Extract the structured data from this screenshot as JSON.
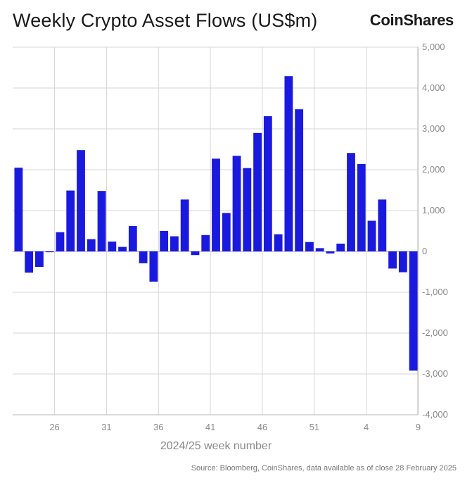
{
  "header": {
    "title": "Weekly Crypto Asset Flows (US$m)",
    "brand": "CoinShares"
  },
  "footer": {
    "source": "Source: Bloomberg, CoinShares, data available as of close 28 February 2025"
  },
  "chart_data": {
    "type": "bar",
    "title": "Weekly Crypto Asset Flows (US$m)",
    "xlabel": "2024/25 week number",
    "ylabel": "",
    "ylim": [
      -4000,
      5000
    ],
    "yticks": [
      5000,
      4000,
      3000,
      2000,
      1000,
      0,
      -1000,
      -2000,
      -3000,
      -4000
    ],
    "ytick_labels": [
      "5,000",
      "4,000",
      "3,000",
      "2,000",
      "1,000",
      "0",
      "-1,000",
      "-2,000",
      "-3,000",
      "-4,000"
    ],
    "grid": true,
    "bar_color": "#1a1adf",
    "categories": [
      "23",
      "24",
      "25",
      "26",
      "27",
      "28",
      "29",
      "30",
      "31",
      "32",
      "33",
      "34",
      "35",
      "36",
      "37",
      "38",
      "39",
      "40",
      "41",
      "42",
      "43",
      "44",
      "45",
      "46",
      "47",
      "48",
      "49",
      "50",
      "51",
      "52",
      "1",
      "2",
      "3",
      "4",
      "5",
      "6",
      "7",
      "8",
      "9"
    ],
    "values": [
      2050,
      -520,
      -380,
      -20,
      470,
      1490,
      2480,
      300,
      1480,
      240,
      110,
      620,
      -290,
      -740,
      500,
      370,
      1270,
      -90,
      400,
      2270,
      940,
      2340,
      2040,
      2900,
      3310,
      420,
      4290,
      3480,
      230,
      80,
      -50,
      190,
      2410,
      2140,
      750,
      1270,
      -420,
      -510,
      -2920
    ],
    "xtick_labels": [
      "26",
      "31",
      "36",
      "41",
      "46",
      "51",
      "4",
      "9"
    ],
    "xtick_categories": [
      "26",
      "31",
      "36",
      "41",
      "46",
      "51",
      "4",
      "9"
    ]
  }
}
